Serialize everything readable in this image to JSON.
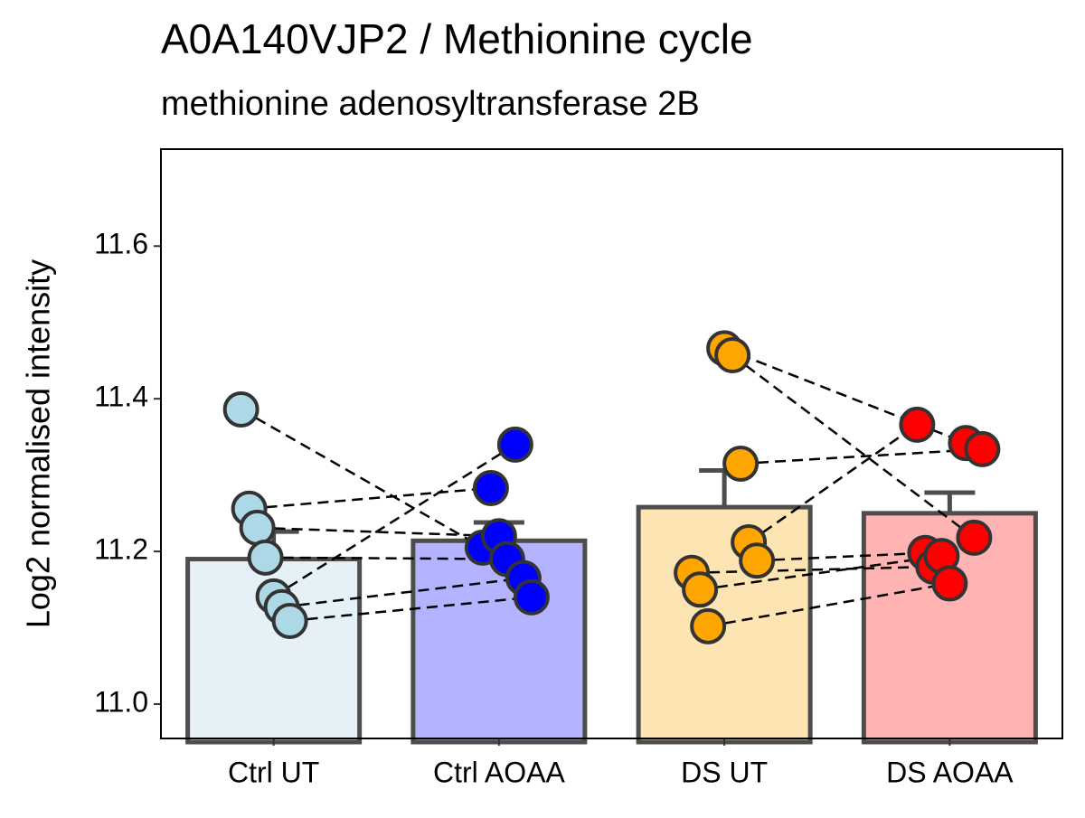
{
  "chart_data": {
    "type": "bar",
    "title": "A0A140VJP2 / Methionine cycle",
    "subtitle": "methionine adenosyltransferase 2B",
    "y_label": "Log2 normalised intensity",
    "categories": [
      "Ctrl UT",
      "Ctrl AOAA",
      "DS UT",
      "DS AOAA"
    ],
    "bar_values": [
      11.19,
      11.214,
      11.258,
      11.25
    ],
    "error_values": [
      0.036,
      0.024,
      0.048,
      0.027
    ],
    "bar_colors": [
      "#e6f1f7",
      "#b3b3ff",
      "#fde4b3",
      "#ffb3b3"
    ],
    "point_colors": [
      "#add8e6",
      "#0000ff",
      "#ffa500",
      "#ff0000"
    ],
    "points": [
      [
        11.386,
        11.256,
        11.231,
        11.192,
        11.141,
        11.127,
        11.109
      ],
      [
        11.205,
        11.283,
        11.22,
        11.19,
        11.34,
        11.165,
        11.14
      ],
      [
        11.466,
        11.457,
        11.315,
        11.212,
        11.188,
        11.172,
        11.15,
        11.102
      ],
      [
        11.342,
        11.218,
        11.334,
        11.366,
        11.198,
        11.18,
        11.194,
        11.158
      ]
    ],
    "ylim": [
      10.955,
      11.727
    ],
    "yticks": [
      {
        "value": 11,
        "label": "11.0"
      },
      11.2,
      11.4,
      11.6
    ]
  }
}
